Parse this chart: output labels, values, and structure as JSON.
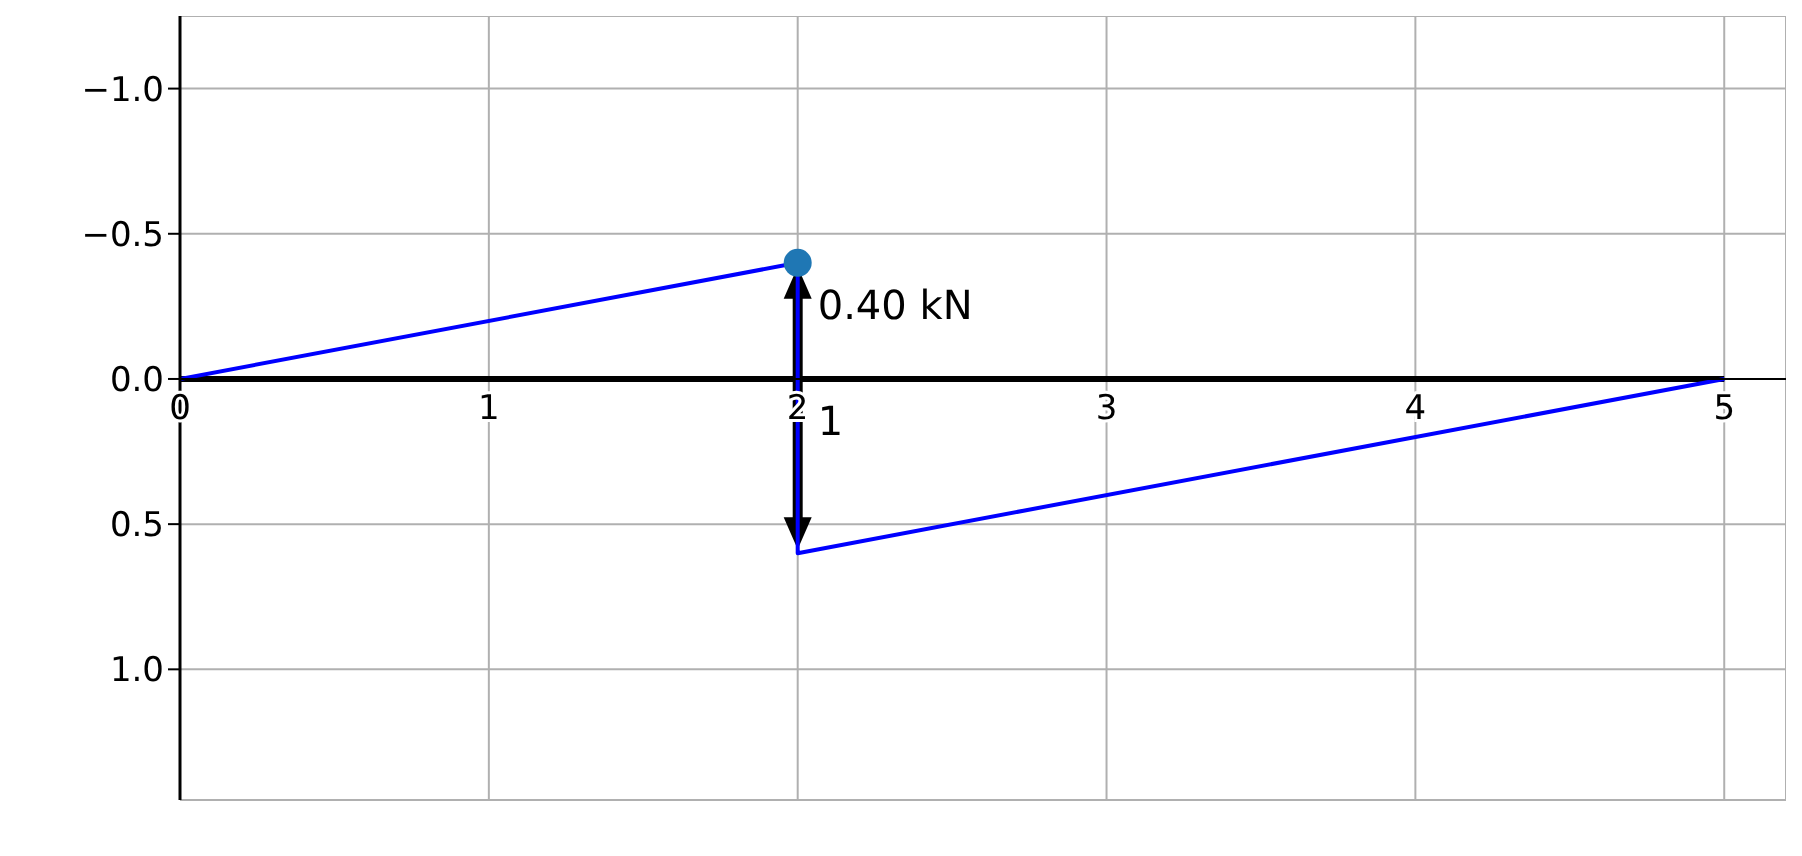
{
  "chart_data": {
    "type": "line",
    "xlim": [
      0,
      5.2
    ],
    "ylim": [
      1.45,
      -1.25
    ],
    "xticks": [
      0,
      1,
      2,
      3,
      4,
      5
    ],
    "yticks": [
      {
        "value": -1,
        "label": "−1.0"
      },
      {
        "value": -0.5,
        "label": "−0.5"
      },
      {
        "value": 0,
        "label": "0.0"
      },
      {
        "value": 0.5,
        "label": "0.5"
      },
      {
        "value": 1,
        "label": "1.0"
      }
    ],
    "grid": true,
    "line_style": "solid",
    "series": [
      {
        "color": "#000000",
        "x": [
          0,
          5
        ],
        "values": [
          0,
          0
        ]
      },
      {
        "color": "#0000ff",
        "x": [
          0,
          2,
          2,
          5
        ],
        "values": [
          0,
          -0.4,
          0.6,
          0
        ]
      },
      {
        "type": "scatter",
        "marker": "circle",
        "color": "#1f77b4",
        "x": [
          2
        ],
        "values": [
          -0.4
        ]
      }
    ],
    "annotations": [
      {
        "text": "0.40 kN",
        "x": 2,
        "y": -0.4
      },
      {
        "text": "1",
        "x": 2,
        "y": 0
      }
    ]
  }
}
